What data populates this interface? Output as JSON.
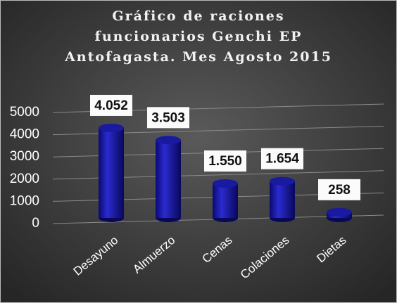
{
  "chart_data": {
    "type": "bar",
    "title": [
      "Gráfico de raciones",
      "funcionarios Genchi EP",
      "Antofagasta. Mes Agosto 2015"
    ],
    "categories": [
      "Desayuno",
      "Almuerzo",
      "Cenas",
      "Colaciones",
      "Dietas"
    ],
    "values": [
      4052,
      3503,
      1550,
      1654,
      258
    ],
    "value_labels": [
      "4.052",
      "3.503",
      "1.550",
      "1.654",
      "258"
    ],
    "color": "#1a1aa0",
    "ylim": [
      0,
      5000
    ],
    "yticks": [
      0,
      1000,
      2000,
      3000,
      4000,
      5000
    ],
    "grid": true
  }
}
